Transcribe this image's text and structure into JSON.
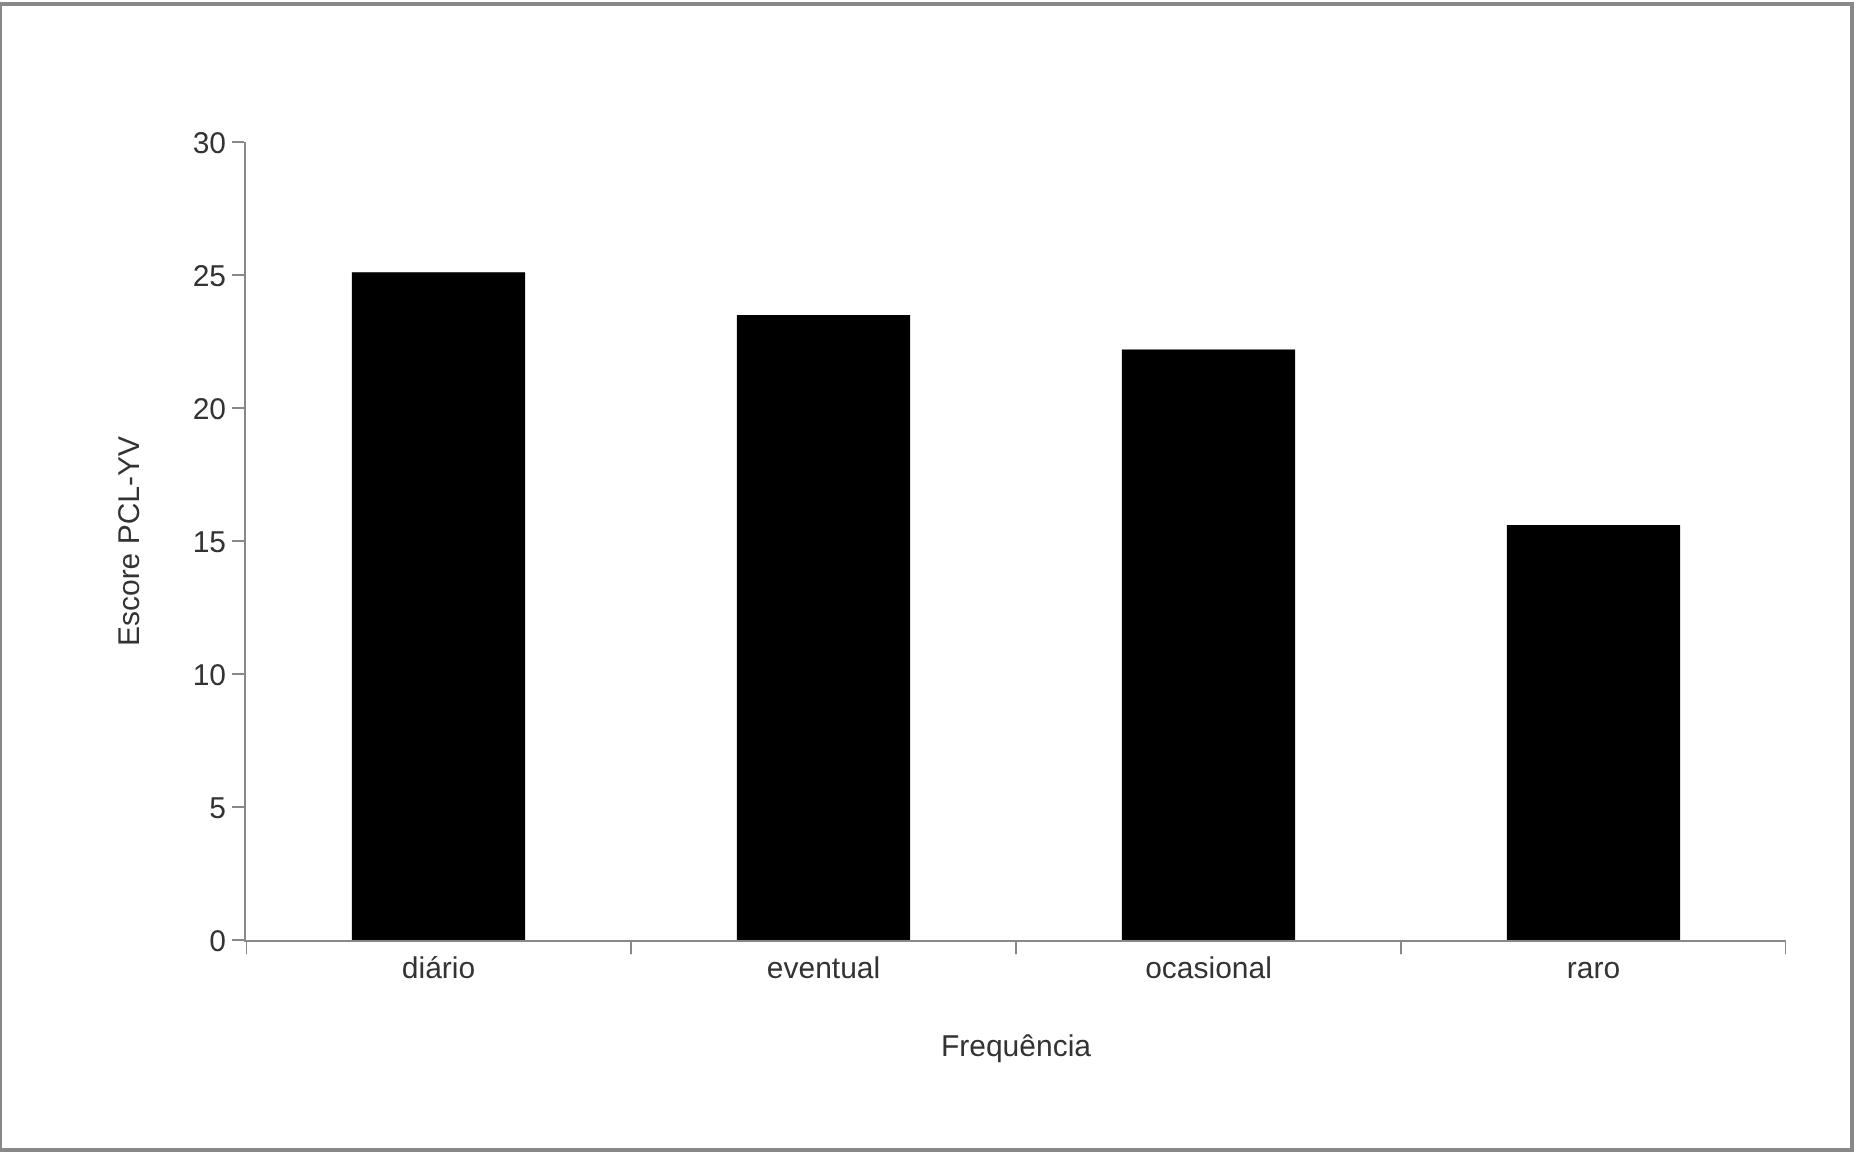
{
  "chart_data": {
    "type": "bar",
    "xlabel": "Frequência",
    "ylabel": "Escore PCL-YV",
    "categories": [
      "diário",
      "eventual",
      "ocasional",
      "raro"
    ],
    "values": [
      25.1,
      23.5,
      22.2,
      15.6
    ],
    "color": "#000000",
    "ylim": [
      0,
      30
    ],
    "yticks": [
      0,
      5,
      10,
      15,
      20,
      25,
      30
    ]
  }
}
